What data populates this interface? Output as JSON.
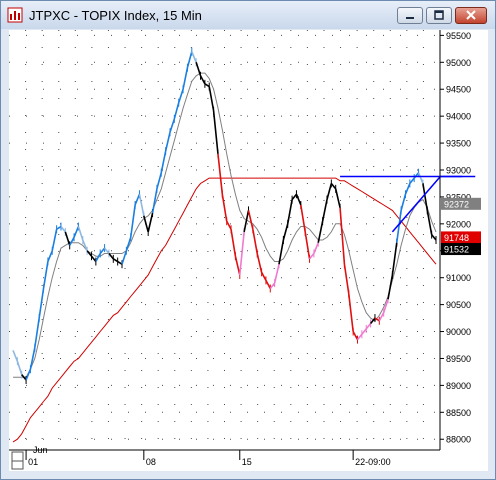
{
  "window": {
    "title": "JTPXC - TOPIX Index, 15 Min",
    "icon": "chart-app-icon",
    "controls": [
      "minimize-icon",
      "maximize-icon",
      "close-icon"
    ]
  },
  "chart_data": {
    "type": "line",
    "price_axis": {
      "ticks": [
        "95500",
        "95000",
        "94500",
        "94000",
        "93500",
        "93000",
        "92500",
        "92000",
        "91500",
        "91000",
        "90500",
        "90000",
        "89500",
        "89000",
        "88500",
        "88000"
      ],
      "ylim": [
        87800,
        95600
      ]
    },
    "price_tags": [
      {
        "label": "92372",
        "value": 92372,
        "color": "#808080",
        "text_color": "#ffffff"
      },
      {
        "label": "91748",
        "value": 91748,
        "color": "#e00000",
        "text_color": "#ffffff"
      },
      {
        "label": "91532",
        "value": 91532,
        "color": "#000000",
        "text_color": "#ffffff"
      }
    ],
    "time_axis": {
      "month_label": "Jun",
      "labels": [
        "01",
        "08",
        "15",
        "22-09:00"
      ]
    },
    "grid": "dotted",
    "colors": {
      "up_strong": "#1a7fe0",
      "up_weak": "#8fb8e0",
      "down_strong": "#e01010",
      "down_weak": "#f07ad0",
      "neutral": "#000000",
      "ma_short": "#808080",
      "ma_long": "#d00000",
      "trendline": "#0000ff"
    },
    "series": [
      {
        "kind": "price",
        "values": [
          89650,
          89450,
          89200,
          89100,
          89300,
          89700,
          90250,
          90800,
          91300,
          91500,
          91900,
          91950,
          91850,
          91600,
          91750,
          91950,
          91700,
          91500,
          91400,
          91300,
          91450,
          91550,
          91450,
          91350,
          91300,
          91250,
          91500,
          91750,
          92350,
          92550,
          92150,
          91850,
          92200,
          92650,
          92950,
          93350,
          93700,
          93950,
          94250,
          94500,
          94900,
          95200,
          95000,
          94750,
          94600,
          94550,
          94100,
          93300,
          92550,
          92050,
          91900,
          91400,
          91050,
          91850,
          92250,
          91900,
          91450,
          91100,
          90950,
          90800,
          90900,
          91250,
          91700,
          92000,
          92450,
          92550,
          92350,
          91850,
          91350,
          91450,
          91650,
          92050,
          92450,
          92750,
          92650,
          92300,
          91250,
          90700,
          90000,
          89850,
          89950,
          90050,
          90150,
          90250,
          90200,
          90350,
          90600,
          91050,
          91650,
          92250,
          92550,
          92750,
          92850,
          92950,
          92750,
          92250,
          91800,
          91700
        ]
      },
      {
        "kind": "ma_short",
        "values": [
          89150,
          89150,
          89150,
          89150,
          89300,
          89500,
          89850,
          90250,
          90650,
          91000,
          91300,
          91550,
          91600,
          91650,
          91650,
          91650,
          91600,
          91500,
          91450,
          91400,
          91400,
          91450,
          91450,
          91450,
          91450,
          91450,
          91500,
          91650,
          91850,
          92000,
          92100,
          92150,
          92250,
          92450,
          92650,
          92950,
          93250,
          93550,
          93850,
          94150,
          94400,
          94650,
          94750,
          94800,
          94800,
          94700,
          94500,
          94150,
          93750,
          93300,
          92900,
          92550,
          92250,
          92100,
          92050,
          92000,
          91900,
          91750,
          91550,
          91400,
          91300,
          91300,
          91350,
          91500,
          91700,
          91850,
          91950,
          91950,
          91900,
          91800,
          91700,
          91700,
          91750,
          91850,
          92000,
          92000,
          91800,
          91500,
          91150,
          90800,
          90550,
          90350,
          90250,
          90200,
          90300,
          90450,
          90650,
          90950,
          91250,
          91600,
          91900,
          92150,
          92300,
          92400,
          92450,
          92300,
          92050,
          91850
        ]
      },
      {
        "kind": "ma_long",
        "values": [
          87950,
          88000,
          88100,
          88250,
          88400,
          88500,
          88600,
          88700,
          88800,
          88950,
          89050,
          89150,
          89250,
          89350,
          89450,
          89500,
          89600,
          89700,
          89800,
          89900,
          90000,
          90100,
          90200,
          90300,
          90350,
          90450,
          90550,
          90650,
          90750,
          90850,
          90950,
          91050,
          91200,
          91350,
          91500,
          91600,
          91750,
          91900,
          92050,
          92200,
          92350,
          92500,
          92650,
          92750,
          92800,
          92850,
          92850,
          92850,
          92850,
          92850,
          92850,
          92850,
          92850,
          92850,
          92850,
          92850,
          92850,
          92850,
          92850,
          92850,
          92850,
          92850,
          92850,
          92850,
          92850,
          92850,
          92850,
          92850,
          92850,
          92850,
          92850,
          92850,
          92850,
          92850,
          92850,
          92800,
          92800,
          92750,
          92700,
          92650,
          92600,
          92550,
          92500,
          92450,
          92400,
          92350,
          92300,
          92250,
          92150,
          92050,
          91950,
          91850,
          91750,
          91650,
          91550,
          91450,
          91350,
          91250
        ]
      }
    ],
    "annotations": [
      {
        "kind": "horizontal_line",
        "value": 92880,
        "from_index": 75,
        "to_index": 106,
        "color": "#0000ff"
      },
      {
        "kind": "trendline",
        "from_index": 87,
        "from_value": 91850,
        "to_index": 98,
        "to_value": 92880,
        "color": "#0000ff"
      },
      {
        "kind": "trendline",
        "from_index": 98,
        "from_value": 92880,
        "to_index": 103,
        "to_value": 92880,
        "color": "#0000ff"
      }
    ],
    "scroll": {
      "position_fraction": 1.0
    }
  }
}
